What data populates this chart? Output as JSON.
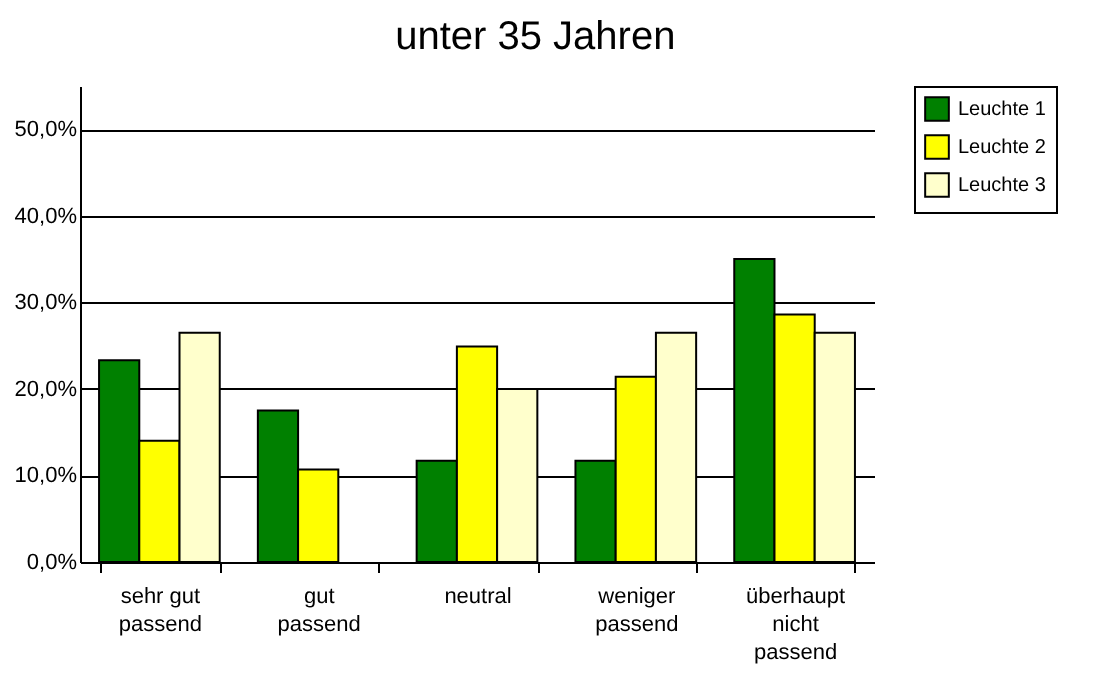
{
  "chart_data": {
    "type": "bar",
    "title": "unter 35 Jahren",
    "categories": [
      "sehr gut\npassend",
      "gut\npassend",
      "neutral",
      "weniger\npassend",
      "überhaupt\nnicht\npassend"
    ],
    "series": [
      {
        "name": "Leuchte 1",
        "color": "#008000",
        "values": [
          23.3,
          17.5,
          11.7,
          11.7,
          35.0
        ]
      },
      {
        "name": "Leuchte 2",
        "color": "#ffff00",
        "values": [
          14.0,
          10.7,
          24.9,
          21.4,
          28.6
        ]
      },
      {
        "name": "Leuchte 3",
        "color": "#ffffcc",
        "values": [
          26.5,
          null,
          20.0,
          26.5,
          26.5
        ]
      }
    ],
    "ylim": [
      0,
      55
    ],
    "yticks": [
      {
        "value": 0,
        "label": "0,0%"
      },
      {
        "value": 10,
        "label": "10,0%"
      },
      {
        "value": 20,
        "label": "20,0%"
      },
      {
        "value": 30,
        "label": "30,0%"
      },
      {
        "value": 40,
        "label": "40,0%"
      },
      {
        "value": 50,
        "label": "50,0%"
      }
    ],
    "grid": "y",
    "legend": "right"
  }
}
